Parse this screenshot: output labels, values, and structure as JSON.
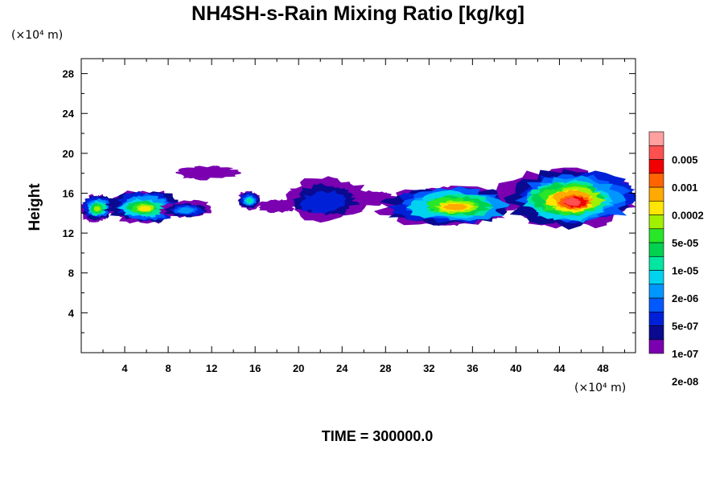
{
  "chart_data": {
    "type": "heatmap",
    "title": "NH4SH-s-Rain Mixing Ratio [kg/kg]",
    "ylabel": "Height",
    "x_unit_label": "(×10⁴ m)",
    "y_unit_label": "(×10⁴ m)",
    "footer": "TIME = 300000.0",
    "xlim": [
      0,
      51
    ],
    "ylim": [
      0,
      29.5
    ],
    "x_ticks": [
      4,
      8,
      12,
      16,
      20,
      24,
      28,
      32,
      36,
      40,
      44,
      48
    ],
    "x_minor_ticks": [
      2,
      6,
      10,
      14,
      18,
      22,
      26,
      30,
      34,
      38,
      42,
      46,
      50
    ],
    "y_ticks": [
      4,
      8,
      12,
      16,
      20,
      24,
      28
    ],
    "y_minor_ticks": [
      2,
      6,
      10,
      14,
      18,
      22,
      26
    ],
    "colorbar": {
      "labels": [
        "0.005",
        "0.001",
        "0.0002",
        "5e-05",
        "1e-05",
        "2e-06",
        "5e-07",
        "1e-07",
        "2e-08"
      ],
      "colors": [
        "#7a00b0",
        "#0a0a90",
        "#0020d8",
        "#005aff",
        "#0096ff",
        "#00d2f0",
        "#00e6a0",
        "#00d250",
        "#28e628",
        "#a0f000",
        "#ffe600",
        "#ffaa00",
        "#ff6400",
        "#f00000",
        "#ff5050",
        "#ffa0a0"
      ]
    },
    "clouds": [
      {
        "x0": 0.0,
        "x1": 3.0,
        "y0": 13.2,
        "y1": 16.0,
        "level": 9
      },
      {
        "x0": 2.5,
        "x1": 9.0,
        "y0": 13.0,
        "y1": 16.3,
        "level": 10
      },
      {
        "x0": 7.5,
        "x1": 11.8,
        "y0": 13.5,
        "y1": 15.2,
        "level": 4
      },
      {
        "x0": 8.5,
        "x1": 14.2,
        "y0": 17.4,
        "y1": 18.8,
        "level": 0
      },
      {
        "x0": 14.5,
        "x1": 16.5,
        "y0": 14.4,
        "y1": 16.3,
        "level": 6
      },
      {
        "x0": 16.5,
        "x1": 19.5,
        "y0": 14.0,
        "y1": 15.4,
        "level": 0
      },
      {
        "x0": 18.5,
        "x1": 26.0,
        "y0": 13.2,
        "y1": 17.5,
        "level": 2
      },
      {
        "x0": 25.0,
        "x1": 29.0,
        "y0": 14.8,
        "y1": 16.2,
        "level": 0
      },
      {
        "x0": 28.5,
        "x1": 40.5,
        "y0": 12.8,
        "y1": 17.0,
        "level": 11
      },
      {
        "x0": 39.5,
        "x1": 51.0,
        "y0": 12.5,
        "y1": 18.6,
        "level": 14
      }
    ]
  }
}
